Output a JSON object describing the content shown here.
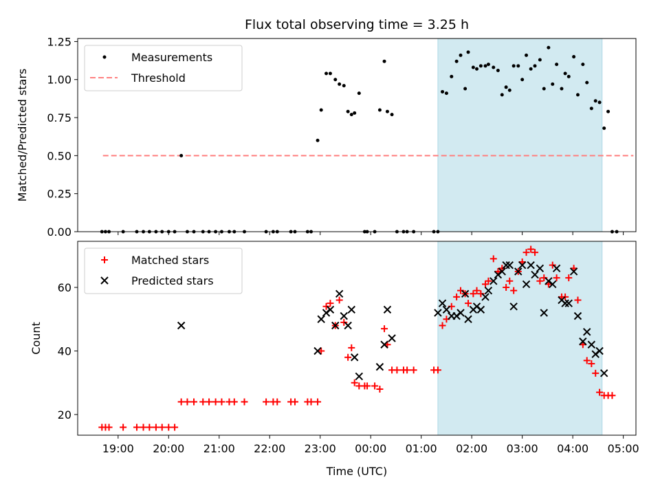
{
  "title": "Flux total observing time = 3.25 h",
  "xlabel": "Time (UTC)",
  "x_ticks": [
    "19:00",
    "20:00",
    "21:00",
    "22:00",
    "23:00",
    "00:00",
    "01:00",
    "02:00",
    "03:00",
    "04:00",
    "05:00"
  ],
  "chart_data": [
    {
      "type": "scatter",
      "ylabel": "Matched/Predicted stars",
      "ylim": [
        0,
        1.27
      ],
      "y_ticks": [
        "0.00",
        "0.25",
        "0.50",
        "0.75",
        "1.00",
        "1.25"
      ],
      "y_tick_values": [
        0,
        0.25,
        0.5,
        0.75,
        1.0,
        1.25
      ],
      "xlim_hours": [
        18.2,
        29.25
      ],
      "x_tick_hours": [
        19,
        20,
        21,
        22,
        23,
        24,
        25,
        26,
        27,
        28,
        29
      ],
      "shaded_span_hours": [
        25.33,
        28.58
      ],
      "shaded_color": "#add8e6",
      "legend": {
        "placement": "upper left",
        "entries": [
          {
            "label": "Measurements",
            "marker": "dot",
            "color": "#000000"
          },
          {
            "label": "Threshold",
            "marker": "dashed-line",
            "color": "#ff7f7f"
          }
        ]
      },
      "threshold": {
        "name": "Threshold",
        "y": 0.5,
        "x_range_hours": [
          18.7,
          29.2
        ],
        "color": "#ff7f7f"
      },
      "series": [
        {
          "name": "Measurements",
          "color": "#000000",
          "points": [
            [
              18.68,
              0
            ],
            [
              18.75,
              0
            ],
            [
              18.82,
              0
            ],
            [
              19.1,
              0
            ],
            [
              19.37,
              0
            ],
            [
              19.5,
              0
            ],
            [
              19.62,
              0
            ],
            [
              19.75,
              0
            ],
            [
              19.87,
              0
            ],
            [
              20.0,
              0
            ],
            [
              20.12,
              0
            ],
            [
              20.25,
              0.5
            ],
            [
              20.37,
              0
            ],
            [
              20.5,
              0
            ],
            [
              20.68,
              0
            ],
            [
              20.8,
              0
            ],
            [
              20.93,
              0
            ],
            [
              21.05,
              0
            ],
            [
              21.2,
              0
            ],
            [
              21.3,
              0
            ],
            [
              21.5,
              0
            ],
            [
              21.93,
              0
            ],
            [
              22.07,
              0
            ],
            [
              22.15,
              0
            ],
            [
              22.42,
              0
            ],
            [
              22.5,
              0
            ],
            [
              22.75,
              0
            ],
            [
              22.82,
              0
            ],
            [
              22.95,
              0.6
            ],
            [
              23.02,
              0.8
            ],
            [
              23.12,
              1.04
            ],
            [
              23.2,
              1.04
            ],
            [
              23.3,
              1.0
            ],
            [
              23.38,
              0.97
            ],
            [
              23.47,
              0.96
            ],
            [
              23.55,
              0.79
            ],
            [
              23.62,
              0.77
            ],
            [
              23.68,
              0.78
            ],
            [
              23.77,
              0.91
            ],
            [
              23.88,
              0
            ],
            [
              23.93,
              0
            ],
            [
              24.08,
              0
            ],
            [
              24.18,
              0.8
            ],
            [
              24.27,
              1.12
            ],
            [
              24.33,
              0.79
            ],
            [
              24.42,
              0.77
            ],
            [
              24.52,
              0
            ],
            [
              24.65,
              0
            ],
            [
              24.72,
              0
            ],
            [
              24.85,
              0
            ],
            [
              25.25,
              0
            ],
            [
              25.33,
              0
            ],
            [
              25.42,
              0.92
            ],
            [
              25.5,
              0.91
            ],
            [
              25.6,
              1.02
            ],
            [
              25.7,
              1.12
            ],
            [
              25.78,
              1.16
            ],
            [
              25.87,
              0.94
            ],
            [
              25.93,
              1.18
            ],
            [
              26.03,
              1.08
            ],
            [
              26.1,
              1.07
            ],
            [
              26.18,
              1.09
            ],
            [
              26.27,
              1.09
            ],
            [
              26.33,
              1.1
            ],
            [
              26.43,
              1.08
            ],
            [
              26.52,
              1.06
            ],
            [
              26.6,
              0.9
            ],
            [
              26.68,
              0.95
            ],
            [
              26.75,
              0.93
            ],
            [
              26.83,
              1.09
            ],
            [
              26.92,
              1.09
            ],
            [
              27.0,
              1.0
            ],
            [
              27.08,
              1.16
            ],
            [
              27.17,
              1.07
            ],
            [
              27.25,
              1.09
            ],
            [
              27.35,
              1.13
            ],
            [
              27.43,
              0.94
            ],
            [
              27.52,
              1.21
            ],
            [
              27.6,
              0.97
            ],
            [
              27.68,
              1.1
            ],
            [
              27.78,
              0.94
            ],
            [
              27.85,
              1.04
            ],
            [
              27.92,
              1.02
            ],
            [
              28.02,
              1.15
            ],
            [
              28.1,
              0.9
            ],
            [
              28.2,
              1.1
            ],
            [
              28.28,
              0.98
            ],
            [
              28.37,
              0.81
            ],
            [
              28.45,
              0.86
            ],
            [
              28.53,
              0.85
            ],
            [
              28.62,
              0.68
            ],
            [
              28.7,
              0.79
            ],
            [
              28.78,
              0
            ],
            [
              28.87,
              0
            ]
          ]
        }
      ]
    },
    {
      "type": "scatter",
      "ylabel": "Count",
      "ylim": [
        13.5,
        74.5
      ],
      "y_ticks": [
        "20",
        "40",
        "60"
      ],
      "y_tick_values": [
        20,
        40,
        60
      ],
      "xlim_hours": [
        18.2,
        29.25
      ],
      "x_tick_hours": [
        19,
        20,
        21,
        22,
        23,
        24,
        25,
        26,
        27,
        28,
        29
      ],
      "shaded_span_hours": [
        25.33,
        28.58
      ],
      "shaded_color": "#add8e6",
      "legend": {
        "placement": "upper left",
        "entries": [
          {
            "label": "Matched stars",
            "marker": "plus",
            "color": "#ff0000"
          },
          {
            "label": "Predicted stars",
            "marker": "x",
            "color": "#000000"
          }
        ]
      },
      "series": [
        {
          "name": "Matched stars",
          "marker": "plus",
          "color": "#ff0000",
          "points": [
            [
              18.68,
              16
            ],
            [
              18.75,
              16
            ],
            [
              18.82,
              16
            ],
            [
              19.1,
              16
            ],
            [
              19.37,
              16
            ],
            [
              19.5,
              16
            ],
            [
              19.62,
              16
            ],
            [
              19.75,
              16
            ],
            [
              19.87,
              16
            ],
            [
              20.0,
              16
            ],
            [
              20.12,
              16
            ],
            [
              20.25,
              24
            ],
            [
              20.37,
              24
            ],
            [
              20.5,
              24
            ],
            [
              20.68,
              24
            ],
            [
              20.8,
              24
            ],
            [
              20.93,
              24
            ],
            [
              21.05,
              24
            ],
            [
              21.2,
              24
            ],
            [
              21.3,
              24
            ],
            [
              21.5,
              24
            ],
            [
              21.93,
              24
            ],
            [
              22.07,
              24
            ],
            [
              22.15,
              24
            ],
            [
              22.42,
              24
            ],
            [
              22.5,
              24
            ],
            [
              22.75,
              24
            ],
            [
              22.82,
              24
            ],
            [
              22.95,
              24
            ],
            [
              23.02,
              40
            ],
            [
              23.12,
              54
            ],
            [
              23.2,
              55
            ],
            [
              23.3,
              48
            ],
            [
              23.38,
              56
            ],
            [
              23.47,
              49
            ],
            [
              23.55,
              38
            ],
            [
              23.62,
              41
            ],
            [
              23.68,
              30
            ],
            [
              23.77,
              29
            ],
            [
              23.88,
              29
            ],
            [
              23.93,
              29
            ],
            [
              24.08,
              29
            ],
            [
              24.18,
              28
            ],
            [
              24.27,
              47
            ],
            [
              24.33,
              42
            ],
            [
              24.42,
              34
            ],
            [
              24.52,
              34
            ],
            [
              24.65,
              34
            ],
            [
              24.72,
              34
            ],
            [
              24.85,
              34
            ],
            [
              25.25,
              34
            ],
            [
              25.33,
              34
            ],
            [
              25.42,
              48
            ],
            [
              25.5,
              50
            ],
            [
              25.6,
              54
            ],
            [
              25.7,
              57
            ],
            [
              25.78,
              59
            ],
            [
              25.87,
              58
            ],
            [
              25.93,
              55
            ],
            [
              26.03,
              58
            ],
            [
              26.1,
              59
            ],
            [
              26.18,
              58
            ],
            [
              26.27,
              61
            ],
            [
              26.33,
              62
            ],
            [
              26.43,
              69
            ],
            [
              26.52,
              65
            ],
            [
              26.6,
              66
            ],
            [
              26.68,
              60
            ],
            [
              26.75,
              62
            ],
            [
              26.83,
              59
            ],
            [
              26.92,
              65
            ],
            [
              27.0,
              68
            ],
            [
              27.08,
              71
            ],
            [
              27.17,
              72
            ],
            [
              27.25,
              71
            ],
            [
              27.35,
              62
            ],
            [
              27.43,
              63
            ],
            [
              27.52,
              61
            ],
            [
              27.6,
              67
            ],
            [
              27.68,
              63
            ],
            [
              27.78,
              57
            ],
            [
              27.85,
              57
            ],
            [
              27.92,
              63
            ],
            [
              28.02,
              66
            ],
            [
              28.1,
              56
            ],
            [
              28.2,
              42
            ],
            [
              28.28,
              37
            ],
            [
              28.37,
              36
            ],
            [
              28.45,
              33
            ],
            [
              28.53,
              27
            ],
            [
              28.62,
              26
            ],
            [
              28.7,
              26
            ],
            [
              28.78,
              26
            ]
          ]
        },
        {
          "name": "Predicted stars",
          "marker": "x",
          "color": "#000000",
          "points": [
            [
              20.25,
              48
            ],
            [
              22.95,
              40
            ],
            [
              23.02,
              50
            ],
            [
              23.12,
              52
            ],
            [
              23.2,
              53
            ],
            [
              23.3,
              48
            ],
            [
              23.38,
              58
            ],
            [
              23.47,
              51
            ],
            [
              23.55,
              48
            ],
            [
              23.62,
              53
            ],
            [
              23.68,
              38
            ],
            [
              23.77,
              32
            ],
            [
              24.18,
              35
            ],
            [
              24.27,
              42
            ],
            [
              24.33,
              53
            ],
            [
              24.42,
              44
            ],
            [
              25.33,
              52
            ],
            [
              25.42,
              55
            ],
            [
              25.5,
              53
            ],
            [
              25.6,
              51
            ],
            [
              25.7,
              51
            ],
            [
              25.78,
              52
            ],
            [
              25.87,
              58
            ],
            [
              25.93,
              50
            ],
            [
              26.03,
              53
            ],
            [
              26.1,
              54
            ],
            [
              26.18,
              53
            ],
            [
              26.27,
              57
            ],
            [
              26.33,
              59
            ],
            [
              26.43,
              62
            ],
            [
              26.52,
              64
            ],
            [
              26.6,
              65
            ],
            [
              26.68,
              67
            ],
            [
              26.75,
              67
            ],
            [
              26.83,
              54
            ],
            [
              26.92,
              65
            ],
            [
              27.0,
              67
            ],
            [
              27.08,
              61
            ],
            [
              27.17,
              67
            ],
            [
              27.25,
              64
            ],
            [
              27.35,
              66
            ],
            [
              27.43,
              52
            ],
            [
              27.52,
              62
            ],
            [
              27.6,
              61
            ],
            [
              27.68,
              66
            ],
            [
              27.78,
              56
            ],
            [
              27.85,
              55
            ],
            [
              27.92,
              55
            ],
            [
              28.02,
              65
            ],
            [
              28.1,
              51
            ],
            [
              28.2,
              43
            ],
            [
              28.28,
              46
            ],
            [
              28.37,
              42
            ],
            [
              28.45,
              39
            ],
            [
              28.53,
              40
            ],
            [
              28.62,
              33
            ]
          ]
        }
      ]
    }
  ]
}
